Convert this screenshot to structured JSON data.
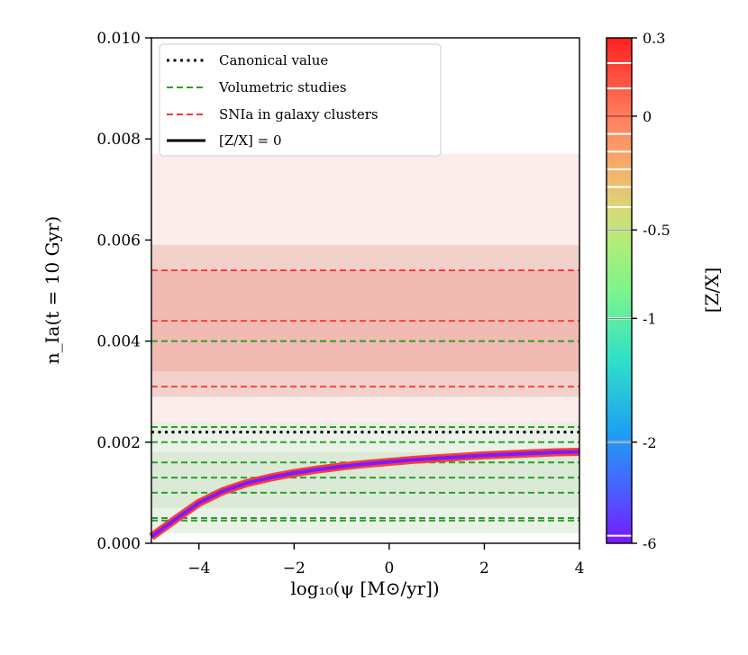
{
  "chart_data": {
    "type": "line",
    "xlabel": "log₁₀(ψ [M⊙/yr])",
    "ylabel": "n_Ia(t = 10 Gyr)",
    "xlim": [
      -5,
      4
    ],
    "ylim": [
      0,
      0.01
    ],
    "x_ticks": [
      -4,
      -2,
      0,
      2,
      4
    ],
    "x_tick_labels": [
      "−4",
      "−2",
      "0",
      "2",
      "4"
    ],
    "y_ticks": [
      0,
      0.002,
      0.004,
      0.006,
      0.008,
      0.01
    ],
    "y_tick_labels": [
      "0.000",
      "0.002",
      "0.004",
      "0.006",
      "0.008",
      "0.010"
    ],
    "canonical_value": 0.0022,
    "canonical_color": "#000000",
    "volumetric_values": [
      0.00045,
      0.0005,
      0.001,
      0.0013,
      0.0016,
      0.002,
      0.0023,
      0.004
    ],
    "volumetric_color": "#2ca02c",
    "cluster_values": [
      0.0031,
      0.0044,
      0.0054
    ],
    "cluster_color": "#ff3333",
    "bands": [
      {
        "kind": "cluster",
        "range": [
          0.0022,
          0.0077
        ],
        "color": "#fbe9e7"
      },
      {
        "kind": "cluster",
        "range": [
          0.0029,
          0.0059
        ],
        "color": "#f0cdc6"
      },
      {
        "kind": "cluster",
        "range": [
          0.0034,
          0.0054
        ],
        "color": "#f1b6ae"
      },
      {
        "kind": "volumetric",
        "range": [
          0.0002,
          0.0024
        ],
        "color": "#e6efe3"
      },
      {
        "kind": "volumetric",
        "range": [
          0.0007,
          0.0018
        ],
        "color": "#d8e8d3"
      }
    ],
    "series": [
      {
        "name": "[Z/X] = 0",
        "metallicity": "0",
        "x": [
          -5,
          -4.5,
          -4,
          -3.5,
          -3,
          -2.5,
          -2,
          -1.5,
          -1,
          -0.5,
          0,
          0.5,
          1,
          1.5,
          2,
          2.5,
          3,
          3.5,
          4
        ],
        "values": [
          0.00013,
          0.00047,
          0.0008,
          0.00103,
          0.00119,
          0.0013,
          0.00139,
          0.00146,
          0.00152,
          0.00157,
          0.00161,
          0.00165,
          0.00168,
          0.00171,
          0.00174,
          0.00176,
          0.00178,
          0.0018,
          0.00181
        ],
        "color": "#ff3b3b"
      },
      {
        "name": "[Z/X] = -6",
        "metallicity": "-6",
        "x": [
          -5,
          -4.5,
          -4,
          -3.5,
          -3,
          -2.5,
          -2,
          -1.5,
          -1,
          -0.5,
          0,
          0.5,
          1,
          1.5,
          2,
          2.5,
          3,
          3.5,
          4
        ],
        "values": [
          0.00013,
          0.00047,
          0.0008,
          0.00103,
          0.00119,
          0.0013,
          0.00139,
          0.00146,
          0.00152,
          0.00157,
          0.00161,
          0.00165,
          0.00168,
          0.00171,
          0.00174,
          0.00176,
          0.00178,
          0.0018,
          0.00181
        ],
        "color": "#7a1cff"
      }
    ],
    "legend": {
      "placement": "top-left",
      "entries": [
        {
          "label": "Canonical value",
          "style": "dotted",
          "color": "#000000"
        },
        {
          "label": "Volumetric studies",
          "style": "dashed",
          "color": "#2ca02c"
        },
        {
          "label": "SNIa in galaxy clusters",
          "style": "dashed",
          "color": "#ff3333"
        },
        {
          "label": "[Z/X] = 0",
          "style": "solid",
          "color": "#000000"
        }
      ]
    },
    "colorbar": {
      "label": "[Z/X]",
      "tick_labels": [
        "0.3",
        "0",
        "-0.5",
        "-1",
        "-2",
        "-6"
      ],
      "tick_fractions": [
        1.0,
        0.845,
        0.62,
        0.445,
        0.2,
        0.0
      ],
      "color_stops": [
        {
          "f": 0.0,
          "color": "#7a18ff"
        },
        {
          "f": 0.1,
          "color": "#4a5cff"
        },
        {
          "f": 0.22,
          "color": "#1ea0f0"
        },
        {
          "f": 0.36,
          "color": "#2ee0c8"
        },
        {
          "f": 0.5,
          "color": "#7cf58a"
        },
        {
          "f": 0.6,
          "color": "#b4ec78"
        },
        {
          "f": 0.66,
          "color": "#d8d878"
        },
        {
          "f": 0.74,
          "color": "#f5b06a"
        },
        {
          "f": 0.84,
          "color": "#ff8060"
        },
        {
          "f": 0.92,
          "color": "#ff5040"
        },
        {
          "f": 1.0,
          "color": "#ff2020"
        }
      ],
      "white_line_fractions": [
        0.015,
        0.2,
        0.445,
        0.62,
        0.665,
        0.705,
        0.74,
        0.775,
        0.81,
        0.9,
        0.95
      ]
    }
  }
}
